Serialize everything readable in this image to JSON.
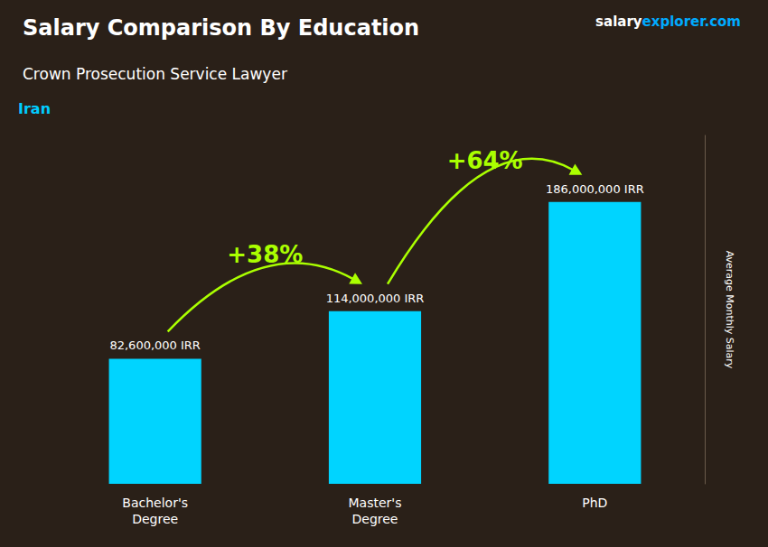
{
  "chart_data": {
    "type": "bar",
    "title": "Salary Comparison By Education",
    "subtitle": "Crown Prosecution Service Lawyer",
    "ylabel": "Average Monthly Salary",
    "categories": [
      "Bachelor's\nDegree",
      "Master's\nDegree",
      "PhD"
    ],
    "values": [
      82600000,
      114000000,
      186000000
    ],
    "value_labels": [
      "82,600,000 IRR",
      "114,000,000 IRR",
      "186,000,000 IRR"
    ],
    "data_labels": true,
    "color": "#00d4ff",
    "ylim": [
      0,
      230000000
    ],
    "grid": false,
    "tick_labels": "x",
    "annotations": [
      "+38%",
      "+64%",
      "Iran",
      "salary",
      "explorer.com"
    ]
  }
}
